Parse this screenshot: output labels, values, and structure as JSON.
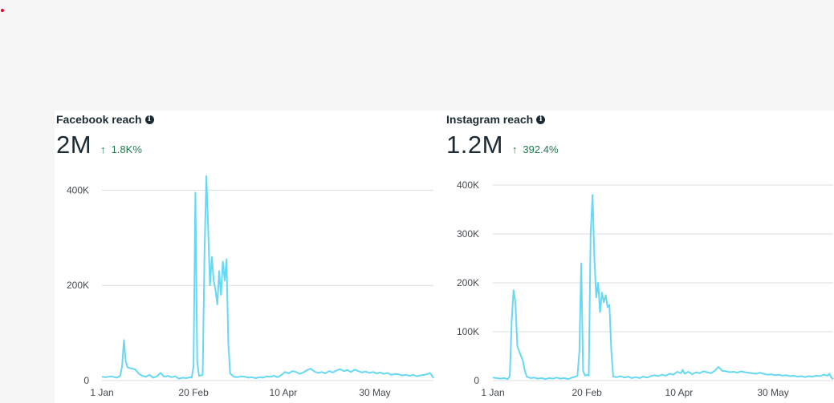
{
  "cards": [
    {
      "title": "Facebook reach",
      "value": "2M",
      "delta": "1.8K%",
      "delta_direction": "up"
    },
    {
      "title": "Instagram reach",
      "value": "1.2M",
      "delta": "392.4%",
      "delta_direction": "up"
    }
  ],
  "colors": {
    "line": "#67d8f3",
    "grid": "#dadde1",
    "delta": "#1f7a4c",
    "accent_dot": "#e4002b"
  },
  "chart_data": [
    {
      "type": "line",
      "x_start": "1 Jan",
      "x_end": "30 Jun",
      "xtick_labels": [
        "1 Jan",
        "20 Feb",
        "10 Apr",
        "30 May"
      ],
      "xtick_days": [
        0,
        50,
        99,
        149
      ],
      "ytick_labels": [
        "0",
        "200K",
        "400K"
      ],
      "ylim": [
        0,
        500000
      ],
      "grid": true,
      "series": [
        {
          "points": [
            [
              0,
              8000
            ],
            [
              2,
              7000
            ],
            [
              5,
              9000
            ],
            [
              8,
              6000
            ],
            [
              10,
              10000
            ],
            [
              11,
              30000
            ],
            [
              12,
              85000
            ],
            [
              13,
              40000
            ],
            [
              14,
              28000
            ],
            [
              16,
              25000
            ],
            [
              18,
              24000
            ],
            [
              20,
              15000
            ],
            [
              22,
              10000
            ],
            [
              24,
              8000
            ],
            [
              26,
              12000
            ],
            [
              28,
              6000
            ],
            [
              30,
              9000
            ],
            [
              32,
              16000
            ],
            [
              34,
              8000
            ],
            [
              36,
              10000
            ],
            [
              38,
              7000
            ],
            [
              40,
              9000
            ],
            [
              42,
              4000
            ],
            [
              44,
              6000
            ],
            [
              46,
              5000
            ],
            [
              48,
              7000
            ],
            [
              49,
              6000
            ],
            [
              50,
              30000
            ],
            [
              51,
              395000
            ],
            [
              52,
              40000
            ],
            [
              53,
              10000
            ],
            [
              55,
              12000
            ],
            [
              56,
              270000
            ],
            [
              57,
              430000
            ],
            [
              58,
              320000
            ],
            [
              59,
              200000
            ],
            [
              60,
              260000
            ],
            [
              61,
              210000
            ],
            [
              62,
              190000
            ],
            [
              63,
              160000
            ],
            [
              64,
              230000
            ],
            [
              65,
              180000
            ],
            [
              66,
              250000
            ],
            [
              67,
              210000
            ],
            [
              68,
              255000
            ],
            [
              69,
              80000
            ],
            [
              70,
              15000
            ],
            [
              72,
              8000
            ],
            [
              74,
              7000
            ],
            [
              76,
              9000
            ],
            [
              78,
              8000
            ],
            [
              80,
              6000
            ],
            [
              82,
              7000
            ],
            [
              84,
              5000
            ],
            [
              86,
              7000
            ],
            [
              88,
              6000
            ],
            [
              90,
              9000
            ],
            [
              92,
              8000
            ],
            [
              94,
              10000
            ],
            [
              96,
              7000
            ],
            [
              98,
              12000
            ],
            [
              100,
              18000
            ],
            [
              102,
              15000
            ],
            [
              104,
              20000
            ],
            [
              106,
              18000
            ],
            [
              108,
              14000
            ],
            [
              110,
              17000
            ],
            [
              112,
              22000
            ],
            [
              114,
              25000
            ],
            [
              116,
              19000
            ],
            [
              118,
              16000
            ],
            [
              120,
              18000
            ],
            [
              122,
              15000
            ],
            [
              124,
              20000
            ],
            [
              126,
              17000
            ],
            [
              128,
              21000
            ],
            [
              130,
              24000
            ],
            [
              132,
              20000
            ],
            [
              134,
              22000
            ],
            [
              136,
              18000
            ],
            [
              138,
              23000
            ],
            [
              140,
              20000
            ],
            [
              142,
              17000
            ],
            [
              144,
              19000
            ],
            [
              146,
              16000
            ],
            [
              148,
              18000
            ],
            [
              150,
              15000
            ],
            [
              152,
              17000
            ],
            [
              154,
              14000
            ],
            [
              156,
              16000
            ],
            [
              158,
              12000
            ],
            [
              160,
              14000
            ],
            [
              162,
              13000
            ],
            [
              164,
              11000
            ],
            [
              166,
              12000
            ],
            [
              168,
              10000
            ],
            [
              170,
              12000
            ],
            [
              172,
              9000
            ],
            [
              174,
              11000
            ],
            [
              176,
              12000
            ],
            [
              178,
              14000
            ],
            [
              179,
              16000
            ],
            [
              180,
              12000
            ],
            [
              181,
              5000
            ]
          ]
        }
      ]
    },
    {
      "type": "line",
      "x_start": "1 Jan",
      "x_end": "30 Jun",
      "xtick_labels": [
        "1 Jan",
        "20 Feb",
        "10 Apr",
        "30 May"
      ],
      "xtick_days": [
        0,
        50,
        99,
        149
      ],
      "ytick_labels": [
        "0",
        "100K",
        "200K",
        "300K",
        "400K"
      ],
      "ylim": [
        0,
        400000
      ],
      "grid": true,
      "series": [
        {
          "points": [
            [
              0,
              6000
            ],
            [
              2,
              5000
            ],
            [
              4,
              4000
            ],
            [
              6,
              5000
            ],
            [
              8,
              3000
            ],
            [
              9,
              10000
            ],
            [
              10,
              120000
            ],
            [
              11,
              185000
            ],
            [
              12,
              160000
            ],
            [
              13,
              70000
            ],
            [
              14,
              60000
            ],
            [
              15,
              50000
            ],
            [
              16,
              40000
            ],
            [
              17,
              20000
            ],
            [
              18,
              8000
            ],
            [
              20,
              5000
            ],
            [
              22,
              6000
            ],
            [
              24,
              4000
            ],
            [
              26,
              5000
            ],
            [
              28,
              3000
            ],
            [
              30,
              5000
            ],
            [
              32,
              4000
            ],
            [
              34,
              6000
            ],
            [
              36,
              4000
            ],
            [
              38,
              5000
            ],
            [
              40,
              3000
            ],
            [
              42,
              6000
            ],
            [
              44,
              8000
            ],
            [
              45,
              10000
            ],
            [
              46,
              60000
            ],
            [
              47,
              240000
            ],
            [
              48,
              20000
            ],
            [
              49,
              10000
            ],
            [
              50,
              12000
            ],
            [
              51,
              10000
            ],
            [
              52,
              300000
            ],
            [
              53,
              380000
            ],
            [
              54,
              250000
            ],
            [
              55,
              170000
            ],
            [
              56,
              200000
            ],
            [
              57,
              140000
            ],
            [
              58,
              180000
            ],
            [
              59,
              160000
            ],
            [
              60,
              175000
            ],
            [
              61,
              150000
            ],
            [
              62,
              155000
            ],
            [
              63,
              60000
            ],
            [
              64,
              8000
            ],
            [
              66,
              7000
            ],
            [
              68,
              9000
            ],
            [
              70,
              6000
            ],
            [
              72,
              8000
            ],
            [
              74,
              5000
            ],
            [
              76,
              7000
            ],
            [
              78,
              5000
            ],
            [
              80,
              8000
            ],
            [
              82,
              6000
            ],
            [
              84,
              9000
            ],
            [
              86,
              11000
            ],
            [
              88,
              9000
            ],
            [
              90,
              12000
            ],
            [
              92,
              10000
            ],
            [
              94,
              14000
            ],
            [
              96,
              12000
            ],
            [
              98,
              18000
            ],
            [
              100,
              15000
            ],
            [
              101,
              22000
            ],
            [
              102,
              14000
            ],
            [
              104,
              18000
            ],
            [
              106,
              13000
            ],
            [
              108,
              17000
            ],
            [
              110,
              15000
            ],
            [
              112,
              19000
            ],
            [
              114,
              17000
            ],
            [
              116,
              15000
            ],
            [
              118,
              20000
            ],
            [
              120,
              28000
            ],
            [
              122,
              20000
            ],
            [
              124,
              19000
            ],
            [
              126,
              17000
            ],
            [
              128,
              18000
            ],
            [
              130,
              16000
            ],
            [
              132,
              19000
            ],
            [
              134,
              17000
            ],
            [
              136,
              16000
            ],
            [
              138,
              15000
            ],
            [
              140,
              14000
            ],
            [
              142,
              16000
            ],
            [
              144,
              14000
            ],
            [
              146,
              12000
            ],
            [
              148,
              13000
            ],
            [
              150,
              11000
            ],
            [
              152,
              12000
            ],
            [
              154,
              10000
            ],
            [
              156,
              11000
            ],
            [
              158,
              9000
            ],
            [
              160,
              10000
            ],
            [
              162,
              8000
            ],
            [
              164,
              9000
            ],
            [
              166,
              7000
            ],
            [
              168,
              9000
            ],
            [
              170,
              8000
            ],
            [
              172,
              10000
            ],
            [
              174,
              9000
            ],
            [
              176,
              12000
            ],
            [
              178,
              10000
            ],
            [
              179,
              14000
            ],
            [
              180,
              6000
            ],
            [
              181,
              3000
            ]
          ]
        }
      ]
    }
  ]
}
